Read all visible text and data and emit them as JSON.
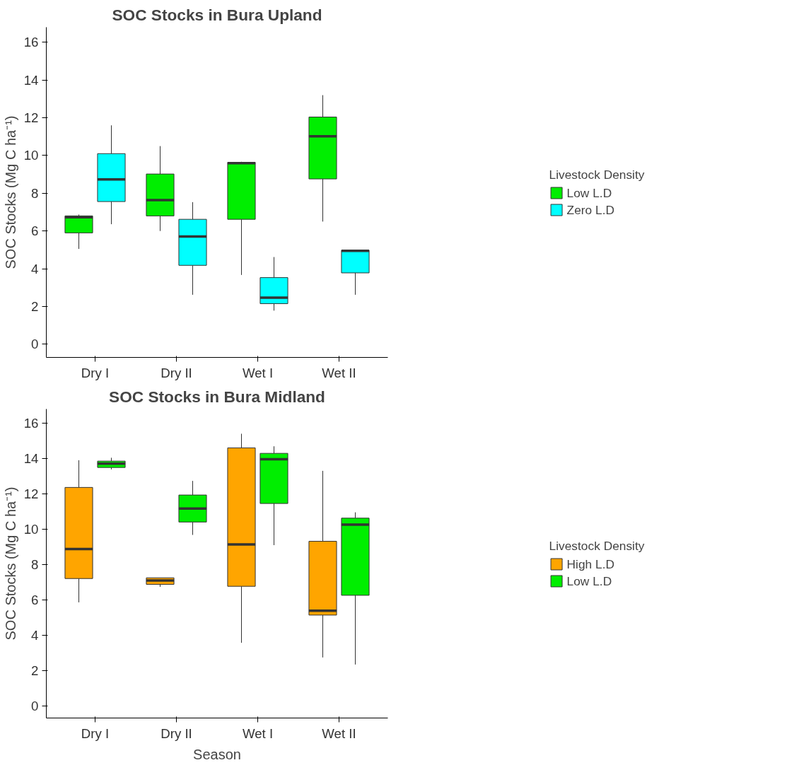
{
  "chart_data": [
    {
      "type": "box",
      "title": "SOC Stocks in Bura Upland",
      "ylabel": "SOC Stocks (Mg C ha⁻¹)",
      "categories": [
        "Dry I",
        "Dry II",
        "Wet I",
        "Wet II"
      ],
      "ylim": [
        -0.7,
        16.8
      ],
      "yticks": [
        0,
        2,
        4,
        6,
        8,
        10,
        12,
        14,
        16
      ],
      "grid": false,
      "legend": "right",
      "legend_title": "Livestock Density",
      "series": [
        {
          "name": "Low L.D",
          "color": "#00ee00",
          "boxes": [
            {
              "low": 5.05,
              "q1": 5.9,
              "median": 6.73,
              "q3": 6.8,
              "high": 6.87
            },
            {
              "low": 6.0,
              "q1": 6.8,
              "median": 7.64,
              "q3": 9.02,
              "high": 10.5
            },
            {
              "low": 3.67,
              "q1": 6.62,
              "median": 9.6,
              "q3": 9.64,
              "high": 9.67
            },
            {
              "low": 6.5,
              "q1": 8.76,
              "median": 11.02,
              "q3": 12.04,
              "high": 13.2
            }
          ]
        },
        {
          "name": "Zero L.D",
          "color": "#00ffff",
          "boxes": [
            {
              "low": 6.36,
              "q1": 7.56,
              "median": 8.73,
              "q3": 10.1,
              "high": 11.6
            },
            {
              "low": 2.62,
              "q1": 4.18,
              "median": 5.71,
              "q3": 6.62,
              "high": 7.53
            },
            {
              "low": 1.78,
              "q1": 2.15,
              "median": 2.47,
              "q3": 3.53,
              "high": 4.62
            },
            {
              "low": 2.62,
              "q1": 3.78,
              "median": 4.95,
              "q3": 4.98,
              "high": 4.98
            }
          ]
        }
      ]
    },
    {
      "type": "box",
      "title": "SOC Stocks in Bura Midland",
      "xlabel": "Season",
      "ylabel": "SOC Stocks (Mg C ha⁻¹)",
      "categories": [
        "Dry I",
        "Dry II",
        "Wet I",
        "Wet II"
      ],
      "ylim": [
        -0.7,
        16.8
      ],
      "yticks": [
        0,
        2,
        4,
        6,
        8,
        10,
        12,
        14,
        16
      ],
      "grid": false,
      "legend": "right",
      "legend_title": "Livestock Density",
      "series": [
        {
          "name": "High L.D",
          "color": "#ffa500",
          "boxes": [
            {
              "low": 5.85,
              "q1": 7.2,
              "median": 8.87,
              "q3": 12.36,
              "high": 13.9
            },
            {
              "low": 6.73,
              "q1": 6.87,
              "median": 7.09,
              "q3": 7.24,
              "high": 7.24
            },
            {
              "low": 3.56,
              "q1": 6.76,
              "median": 9.13,
              "q3": 14.6,
              "high": 15.4
            },
            {
              "low": 2.73,
              "q1": 5.13,
              "median": 5.38,
              "q3": 9.31,
              "high": 13.3
            }
          ]
        },
        {
          "name": "Low L.D",
          "color": "#00ee00",
          "boxes": [
            {
              "low": 13.38,
              "q1": 13.49,
              "median": 13.71,
              "q3": 13.85,
              "high": 14.04
            },
            {
              "low": 9.67,
              "q1": 10.4,
              "median": 11.16,
              "q3": 11.93,
              "high": 12.73
            },
            {
              "low": 9.09,
              "q1": 11.45,
              "median": 13.96,
              "q3": 14.29,
              "high": 14.69
            },
            {
              "low": 2.33,
              "q1": 6.25,
              "median": 10.25,
              "q3": 10.62,
              "high": 10.95
            }
          ]
        }
      ]
    }
  ]
}
